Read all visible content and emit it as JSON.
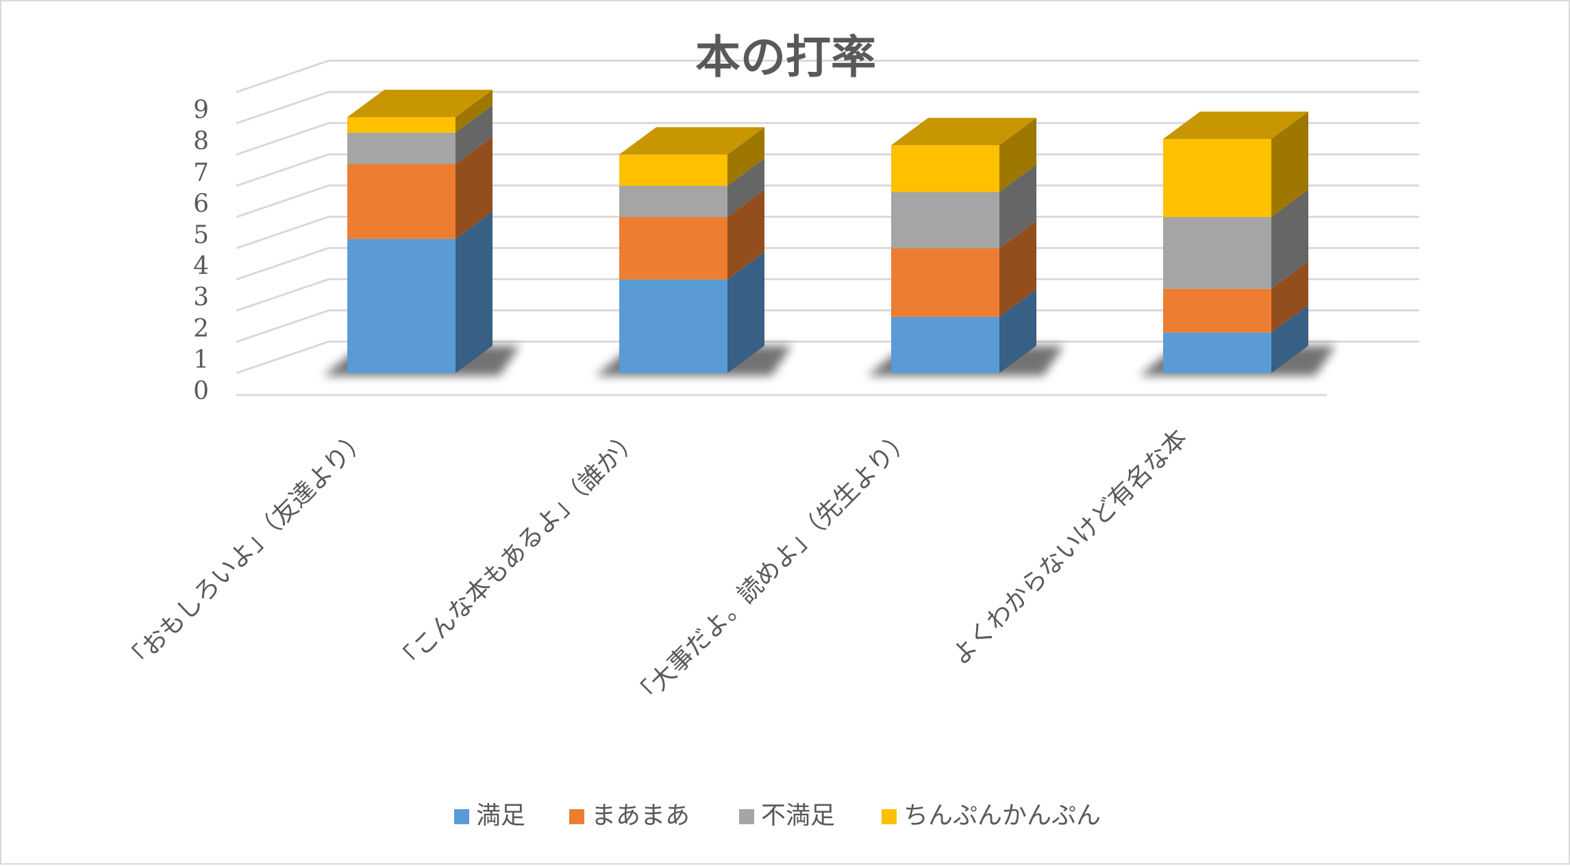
{
  "chart_data": {
    "type": "bar",
    "stacked": true,
    "three_d": true,
    "title": "本の打率",
    "xlabel": "",
    "ylabel": "",
    "ylim": [
      0,
      9
    ],
    "yticks": [
      "0",
      "1",
      "2",
      "3",
      "4",
      "5",
      "6",
      "7",
      "8",
      "9"
    ],
    "grid": true,
    "legend_position": "bottom",
    "categories": [
      "「おもしろいよ」（友達より）",
      "「こんな本もあるよ」（誰か）",
      "「大事だよ。読めよ」（先生より）",
      "よくわからないけど有名な本"
    ],
    "series": [
      {
        "name": "満足",
        "color": "#5b9bd5",
        "values": [
          4.3,
          3.0,
          1.8,
          1.3
        ]
      },
      {
        "name": "まあまあ",
        "color": "#ed7d31",
        "values": [
          2.4,
          2.0,
          2.2,
          1.4
        ]
      },
      {
        "name": "不満足",
        "color": "#a5a5a5",
        "values": [
          1.0,
          1.0,
          1.8,
          2.3
        ]
      },
      {
        "name": "ちんぷんかんぷん",
        "color": "#ffc000",
        "values": [
          0.5,
          1.0,
          1.5,
          2.5
        ]
      }
    ]
  }
}
